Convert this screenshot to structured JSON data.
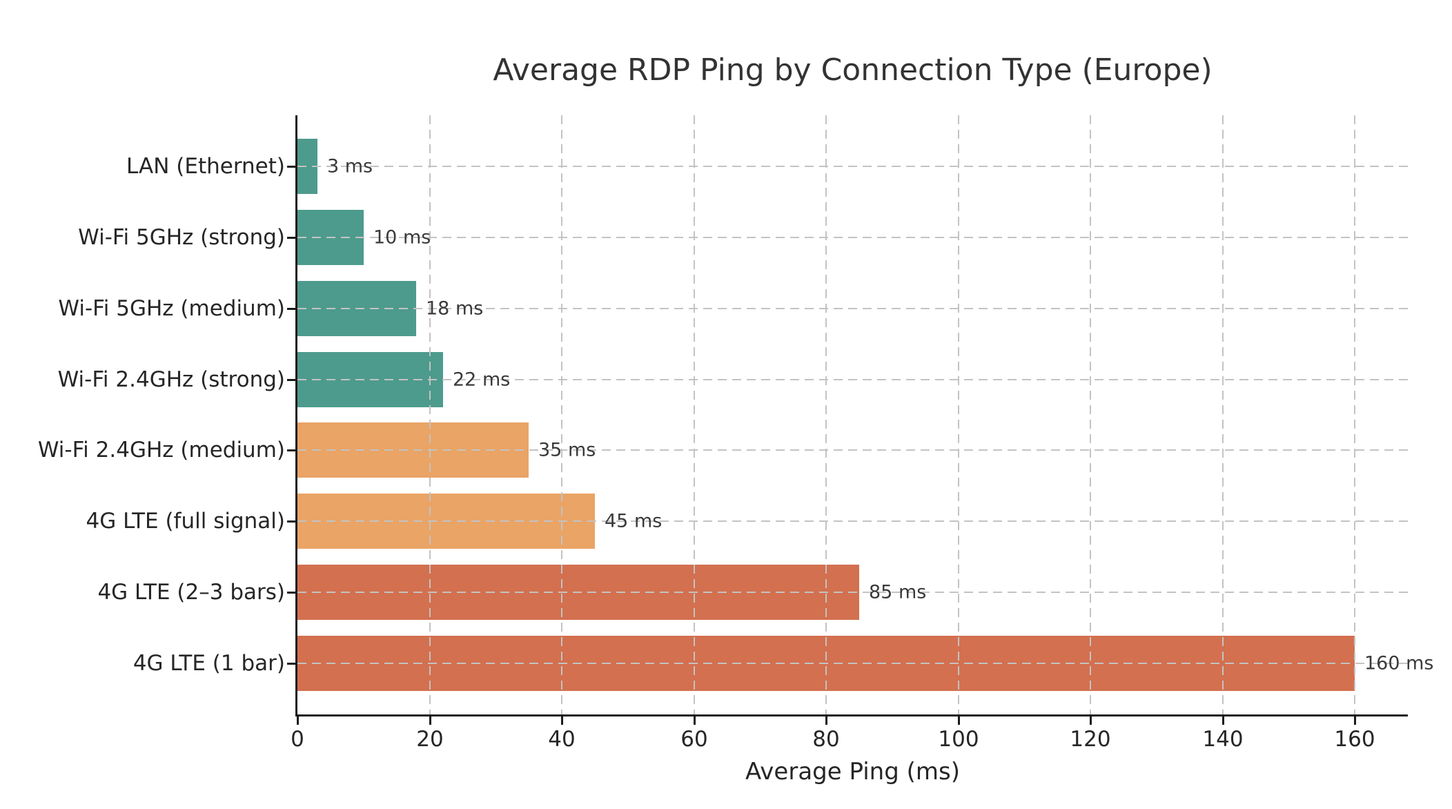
{
  "chart_data": {
    "type": "bar",
    "orientation": "horizontal",
    "title": "Average RDP Ping by Connection Type (Europe)",
    "xlabel": "Average Ping (ms)",
    "ylabel": "",
    "categories": [
      "LAN (Ethernet)",
      "Wi-Fi 5GHz (strong)",
      "Wi-Fi 5GHz (medium)",
      "Wi-Fi 2.4GHz (strong)",
      "Wi-Fi 2.4GHz (medium)",
      "4G LTE (full signal)",
      "4G LTE (2–3 bars)",
      "4G LTE (1 bar)"
    ],
    "values": [
      3,
      10,
      18,
      22,
      35,
      45,
      85,
      160
    ],
    "value_labels": [
      "3 ms",
      "10 ms",
      "18 ms",
      "22 ms",
      "35 ms",
      "45 ms",
      "85 ms",
      "160 ms"
    ],
    "bar_colors": [
      "#4d9b8d",
      "#4d9b8d",
      "#4d9b8d",
      "#4d9b8d",
      "#e9a466",
      "#e9a466",
      "#d3704f",
      "#d3704f"
    ],
    "xlim": [
      0,
      168
    ],
    "xticks": [
      0,
      20,
      40,
      60,
      80,
      100,
      120,
      140,
      160
    ],
    "grid": "dashed-both-axes",
    "legend": "none",
    "colors": {
      "axis": "#1a1a1a",
      "grid": "#c3c3c3",
      "title_text": "#333333",
      "tick_text": "#262626",
      "value_text": "#3a3a3a",
      "background": "#ffffff"
    }
  }
}
